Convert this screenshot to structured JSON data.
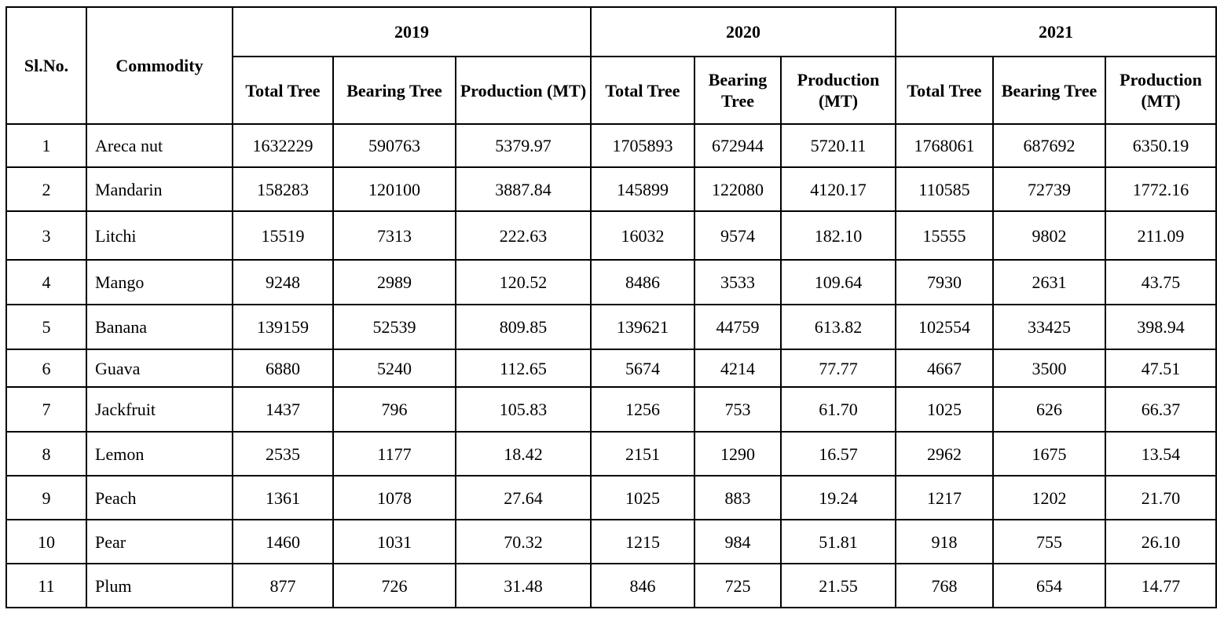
{
  "table": {
    "headers": {
      "slno": "Sl.No.",
      "commodity": "Commodity",
      "years": [
        "2019",
        "2020",
        "2021"
      ],
      "sub": [
        [
          "Total Tree",
          "Bearing Tree",
          "Production (MT)"
        ],
        [
          "Total Tree",
          "Bearing Tree",
          "Production (MT)"
        ],
        [
          "Total Tree",
          "Bearing Tree",
          "Production (MT)"
        ]
      ]
    },
    "rows": [
      [
        "1",
        "Areca nut",
        "1632229",
        "590763",
        "5379.97",
        "1705893",
        "672944",
        "5720.11",
        "1768061",
        "687692",
        "6350.19"
      ],
      [
        "2",
        "Mandarin",
        "158283",
        "120100",
        "3887.84",
        "145899",
        "122080",
        "4120.17",
        "110585",
        "72739",
        "1772.16"
      ],
      [
        "3",
        "Litchi",
        "15519",
        "7313",
        "222.63",
        "16032",
        "9574",
        "182.10",
        "15555",
        "9802",
        "211.09"
      ],
      [
        "4",
        "Mango",
        "9248",
        "2989",
        "120.52",
        "8486",
        "3533",
        "109.64",
        "7930",
        "2631",
        "43.75"
      ],
      [
        "5",
        "Banana",
        "139159",
        "52539",
        "809.85",
        "139621",
        "44759",
        "613.82",
        "102554",
        "33425",
        "398.94"
      ],
      [
        "6",
        "Guava",
        "6880",
        "5240",
        "112.65",
        "5674",
        "4214",
        "77.77",
        "4667",
        "3500",
        "47.51"
      ],
      [
        "7",
        "Jackfruit",
        "1437",
        "796",
        "105.83",
        "1256",
        "753",
        "61.70",
        "1025",
        "626",
        "66.37"
      ],
      [
        "8",
        "Lemon",
        "2535",
        "1177",
        "18.42",
        "2151",
        "1290",
        "16.57",
        "2962",
        "1675",
        "13.54"
      ],
      [
        "9",
        "Peach",
        "1361",
        "1078",
        "27.64",
        "1025",
        "883",
        "19.24",
        "1217",
        "1202",
        "21.70"
      ],
      [
        "10",
        "Pear",
        "1460",
        "1031",
        "70.32",
        "1215",
        "984",
        "51.81",
        "918",
        "755",
        "26.10"
      ],
      [
        "11",
        "Plum",
        "877",
        "726",
        "31.48",
        "846",
        "725",
        "21.55",
        "768",
        "654",
        "14.77"
      ]
    ]
  }
}
